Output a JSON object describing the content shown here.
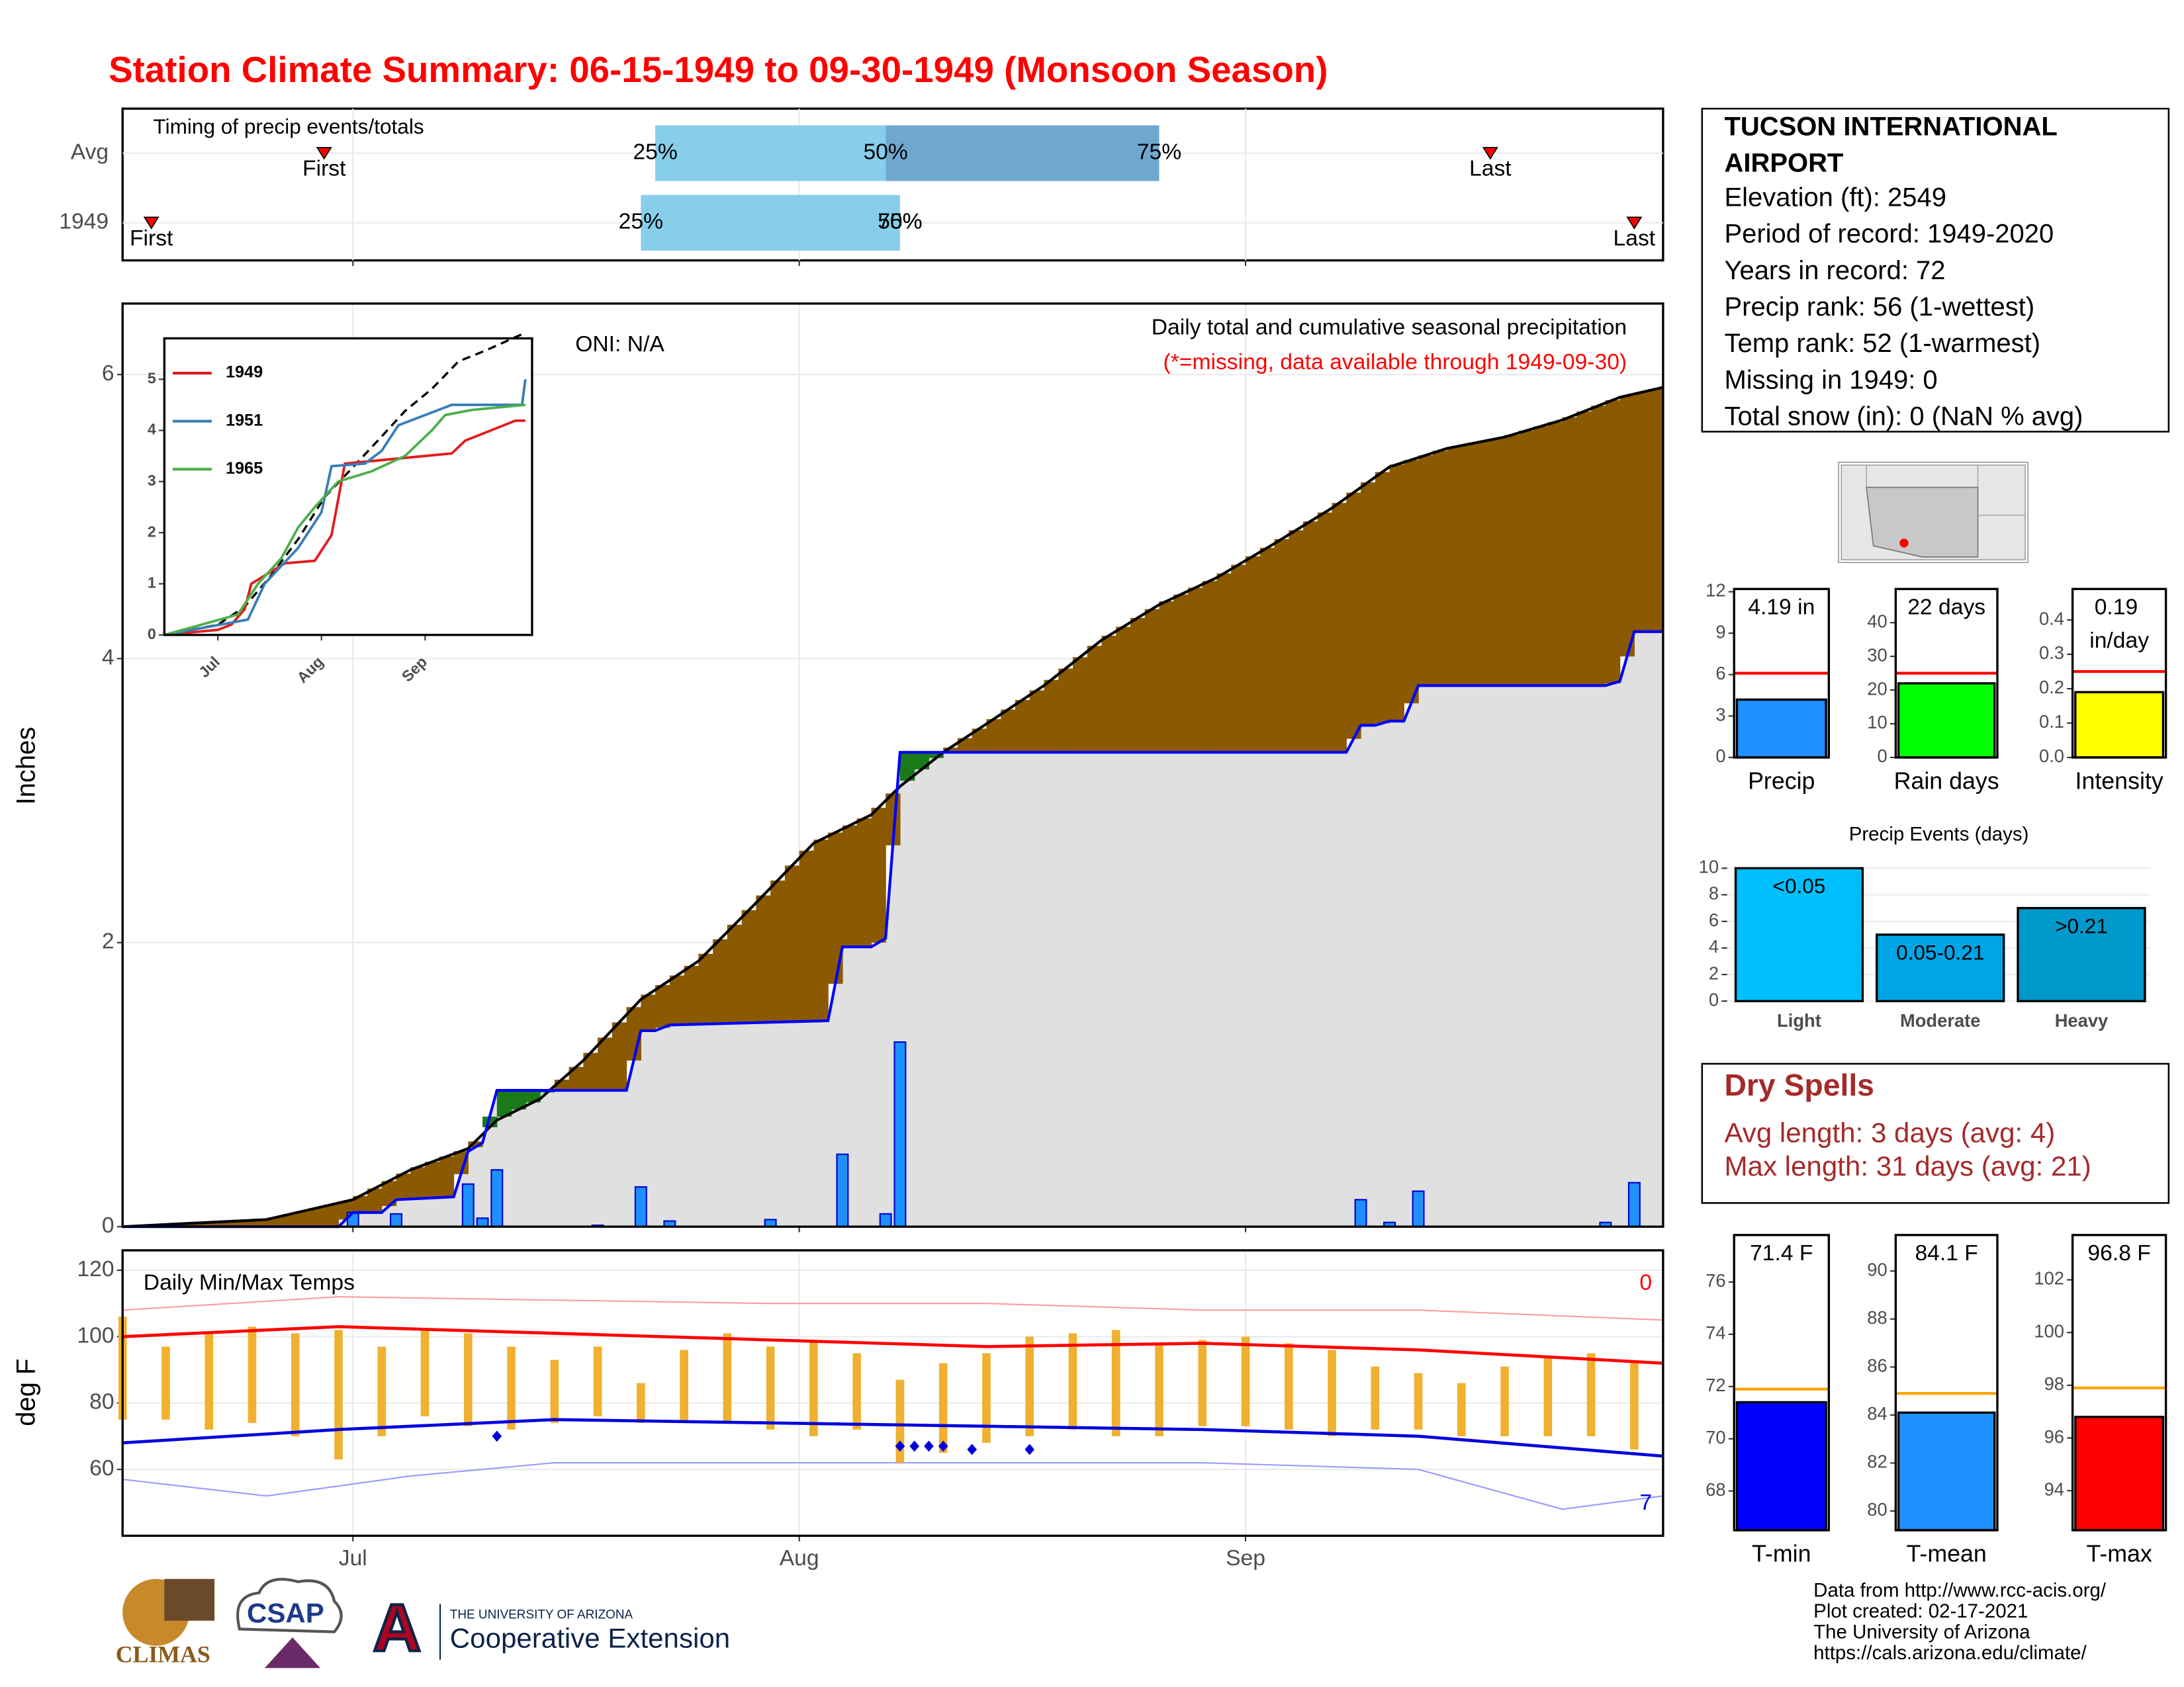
{
  "title": "Station Climate Summary: 06-15-1949 to 09-30-1949 (Monsoon Season)",
  "station": {
    "name": "TUCSON INTERNATIONAL AIRPORT",
    "lines": [
      "Elevation (ft): 2549",
      "Period of record: 1949-2020",
      "Years in record: 72",
      "Precip rank: 56 (1-wettest)",
      "Temp rank: 52 (1-warmest)",
      "Missing in 1949: 0",
      "Total snow (in): 0 (NaN % avg)"
    ]
  },
  "dry_spells": {
    "title": "Dry Spells",
    "lines": [
      "Avg length: 3 days (avg: 4)",
      "Max length: 31 days (avg: 21)"
    ]
  },
  "footer": [
    "Data from http://www.rcc-acis.org/",
    "Plot created: 02-17-2021",
    "The University of Arizona",
    "https://cals.arizona.edu/climate/"
  ],
  "logos": {
    "climas": "CLIMAS",
    "csap": "CSAP",
    "ua_letter": "A",
    "ua_name": "THE UNIVERSITY OF ARIZONA",
    "extension": "Cooperative Extension"
  },
  "chart_data": [
    {
      "type": "timing",
      "title": "Timing of precip events/totals",
      "xlim": [
        0,
        107
      ],
      "xgrid": [
        16,
        47,
        78
      ],
      "labels": {
        "first": "First",
        "last": "Last",
        "q25": "25%",
        "q50": "50%",
        "q75": "75%"
      },
      "rows": [
        {
          "name": "Avg",
          "first": 14,
          "q25": 37,
          "q50": 53,
          "q75": 72,
          "last": 95
        },
        {
          "name": "1949",
          "first": 2,
          "q25": 36,
          "q50": 54,
          "q75": 54,
          "last": 105
        }
      ],
      "colors": {
        "lower": "#87ceeb",
        "upper": "#6fa8cf",
        "marker": "#ff0000"
      }
    },
    {
      "type": "precip",
      "title": "Daily total and cumulative seasonal precipitation",
      "subtitle": "(*=missing, data available through 1949-09-30)",
      "annotation": "ONI: N/A",
      "ylabel": "Inches",
      "xlim": [
        0,
        107
      ],
      "xgrid": [
        16,
        47,
        78
      ],
      "ylim": [
        0,
        6.5
      ],
      "yticks": [
        0,
        2,
        4,
        6
      ],
      "grid": true,
      "cumulative_avg": {
        "color": "#000000",
        "x": [
          0,
          10,
          16,
          20,
          24,
          26,
          29,
          32,
          36,
          40,
          44,
          48,
          52,
          54,
          57,
          60,
          64,
          68,
          72,
          76,
          80,
          84,
          88,
          92,
          96,
          100,
          104,
          107
        ],
        "values": [
          0,
          0.05,
          0.19,
          0.4,
          0.55,
          0.75,
          0.9,
          1.17,
          1.6,
          1.87,
          2.28,
          2.7,
          2.9,
          3.1,
          3.34,
          3.54,
          3.81,
          4.13,
          4.38,
          4.57,
          4.81,
          5.06,
          5.35,
          5.48,
          5.56,
          5.68,
          5.84,
          5.91
        ]
      },
      "cumulative_obs": {
        "color": "#0000ff",
        "x": [
          0,
          15,
          16,
          18,
          19,
          23,
          24,
          25,
          26,
          35,
          36,
          37,
          38,
          49,
          50,
          52,
          53,
          54,
          85,
          86,
          87,
          88,
          89,
          90,
          103,
          104,
          105,
          107
        ],
        "values": [
          0,
          0,
          0.1,
          0.1,
          0.19,
          0.21,
          0.53,
          0.59,
          0.96,
          0.96,
          1.38,
          1.38,
          1.42,
          1.45,
          1.97,
          1.97,
          2.03,
          3.34,
          3.34,
          3.53,
          3.53,
          3.56,
          3.56,
          3.81,
          3.81,
          3.84,
          4.19,
          4.19
        ]
      },
      "daily": {
        "color": "#1e90ff",
        "x": [
          16,
          19,
          24,
          25,
          26,
          33,
          36,
          38,
          45,
          50,
          53,
          54,
          86,
          88,
          90,
          103,
          105
        ],
        "values": [
          0.1,
          0.09,
          0.3,
          0.06,
          0.4,
          0.01,
          0.28,
          0.04,
          0.05,
          0.51,
          0.09,
          1.3,
          0.19,
          0.03,
          0.25,
          0.03,
          0.31
        ]
      },
      "fill_colors": {
        "below_avg": "#8b5a00",
        "above_avg": "#1a7a1a",
        "observed": "#e0e0e0"
      }
    },
    {
      "type": "line",
      "xlim": [
        0,
        110
      ],
      "ylim": [
        0,
        5.8
      ],
      "yticks": [
        0,
        1,
        2,
        3,
        4,
        5
      ],
      "xticks": [
        {
          "value": 16,
          "label": "Jul"
        },
        {
          "value": 47,
          "label": "Aug"
        },
        {
          "value": 78,
          "label": "Sep"
        }
      ],
      "series": [
        {
          "name": "1949",
          "color": "#e41a1c",
          "x": [
            0,
            16,
            20,
            24,
            26,
            36,
            45,
            50,
            54,
            86,
            90,
            105,
            108
          ],
          "values": [
            0,
            0.1,
            0.2,
            0.5,
            1.0,
            1.4,
            1.45,
            1.95,
            3.35,
            3.55,
            3.8,
            4.19,
            4.19
          ]
        },
        {
          "name": "1951",
          "color": "#377eb8",
          "x": [
            0,
            25,
            30,
            40,
            47,
            50,
            60,
            65,
            70,
            78,
            86,
            107,
            108
          ],
          "values": [
            0,
            0.3,
            1.0,
            1.7,
            2.4,
            3.3,
            3.35,
            3.6,
            4.1,
            4.3,
            4.5,
            4.5,
            5.0
          ]
        },
        {
          "name": "1965",
          "color": "#4daf4a",
          "x": [
            0,
            22,
            28,
            35,
            40,
            45,
            52,
            62,
            72,
            80,
            84,
            92,
            108
          ],
          "values": [
            0,
            0.4,
            1.0,
            1.5,
            2.1,
            2.5,
            3.0,
            3.2,
            3.5,
            4.0,
            4.3,
            4.4,
            4.5
          ]
        }
      ],
      "reference": {
        "color": "#000000",
        "x": [
          0,
          16,
          24,
          32,
          40,
          48,
          56,
          64,
          72,
          80,
          88,
          96,
          108
        ],
        "values": [
          0,
          0.2,
          0.55,
          1.17,
          1.87,
          2.7,
          3.25,
          3.81,
          4.38,
          4.81,
          5.35,
          5.56,
          5.91
        ]
      }
    },
    {
      "type": "temps",
      "title": "Daily Min/Max Temps",
      "ylabel": "deg F",
      "xlim": [
        0,
        107
      ],
      "ylim": [
        40,
        126
      ],
      "yticks": [
        60,
        80,
        100,
        120
      ],
      "grid": true,
      "xticks": [
        {
          "value": 16,
          "label": "Jul"
        },
        {
          "value": 47,
          "label": "Aug"
        },
        {
          "value": 78,
          "label": "Sep"
        }
      ],
      "record_high_count": 0,
      "record_low_count": 7,
      "daily": {
        "color": "#f0b030",
        "x": [
          0,
          3,
          6,
          9,
          12,
          15,
          18,
          21,
          24,
          27,
          30,
          33,
          36,
          39,
          42,
          45,
          48,
          51,
          54,
          57,
          60,
          63,
          66,
          69,
          72,
          75,
          78,
          81,
          84,
          87,
          90,
          93,
          96,
          99,
          102,
          105
        ],
        "max": [
          106,
          97,
          101,
          103,
          101,
          102,
          97,
          102,
          101,
          97,
          93,
          97,
          86,
          96,
          101,
          97,
          99,
          95,
          87,
          92,
          95,
          100,
          101,
          102,
          98,
          99,
          100,
          98,
          96,
          91,
          89,
          86,
          91,
          94,
          95,
          92
        ],
        "min": [
          75,
          75,
          72,
          74,
          70,
          63,
          70,
          76,
          73,
          72,
          74,
          76,
          74,
          74,
          74,
          72,
          70,
          72,
          62,
          65,
          68,
          70,
          72,
          70,
          70,
          73,
          73,
          72,
          70,
          72,
          72,
          70,
          70,
          70,
          70,
          66
        ]
      },
      "normal_max": {
        "color": "#ff0000",
        "x": [
          0,
          15,
          30,
          45,
          60,
          75,
          90,
          107
        ],
        "values": [
          100,
          103,
          101,
          99,
          97,
          98,
          96,
          92
        ]
      },
      "normal_min": {
        "color": "#0000dd",
        "x": [
          0,
          15,
          30,
          45,
          60,
          75,
          90,
          107
        ],
        "values": [
          68,
          72,
          75,
          74,
          73,
          72,
          70,
          64
        ]
      },
      "record_max": {
        "color": "#ff9a9a",
        "x": [
          0,
          15,
          30,
          45,
          60,
          75,
          90,
          107
        ],
        "values": [
          108,
          112,
          111,
          110,
          110,
          108,
          108,
          105
        ]
      },
      "record_min": {
        "color": "#9a9aff",
        "x": [
          0,
          10,
          20,
          30,
          45,
          60,
          75,
          90,
          100,
          107
        ],
        "values": [
          57,
          52,
          58,
          62,
          62,
          62,
          62,
          60,
          48,
          52
        ]
      },
      "record_lows": {
        "color": "#0000dd",
        "x": [
          26,
          54,
          55,
          56,
          57,
          59,
          63
        ],
        "values": [
          70,
          67,
          67,
          67,
          67,
          66,
          66
        ]
      }
    },
    {
      "type": "summary",
      "categories": [
        "Precip"
      ],
      "values": [
        4.19
      ],
      "value_labels": [
        "4.19 in"
      ],
      "average": 6.1,
      "average_color": "#ff0000",
      "color": "#1e90ff",
      "ylim": [
        0,
        12.2
      ],
      "yticks": [
        0,
        3,
        6,
        9,
        12
      ]
    },
    {
      "type": "summary",
      "categories": [
        "Rain days"
      ],
      "values": [
        22
      ],
      "value_labels": [
        "22 days"
      ],
      "average": 25,
      "average_color": "#ff0000",
      "color": "#00ff00",
      "ylim": [
        0,
        50
      ],
      "yticks": [
        0,
        10,
        20,
        30,
        40
      ]
    },
    {
      "type": "summary",
      "categories": [
        "Intensity"
      ],
      "values": [
        0.19
      ],
      "value_labels": [
        "0.19 in/day"
      ],
      "average": 0.25,
      "average_color": "#ff0000",
      "color": "#ffff00",
      "ylim": [
        0,
        0.49
      ],
      "yticks": [
        {
          "value": 0,
          "label": "0.0"
        },
        0.1,
        0.2,
        0.3,
        0.4
      ]
    },
    {
      "type": "bar",
      "title": "Precip Events (days)",
      "categories": [
        "Light",
        "Moderate",
        "Heavy"
      ],
      "values": [
        10,
        5,
        7
      ],
      "bin_labels": [
        "<0.05",
        "0.05-0.21",
        ">0.21"
      ],
      "colors": [
        "#00bfff",
        "#00a5e6",
        "#0099cc"
      ],
      "ylim": [
        0,
        11
      ],
      "yticks": [
        0,
        2,
        4,
        6,
        8,
        10
      ],
      "grid": true
    },
    {
      "type": "summary",
      "categories": [
        "T-min"
      ],
      "values": [
        71.4
      ],
      "value_labels": [
        "71.4 F"
      ],
      "average": 71.9,
      "average_color": "#ffa500",
      "color": "#0000ff",
      "ylim": [
        66.5,
        77.8
      ],
      "yticks": [
        68,
        70,
        72,
        74,
        76
      ]
    },
    {
      "type": "summary",
      "categories": [
        "T-mean"
      ],
      "values": [
        84.1
      ],
      "value_labels": [
        "84.1 F"
      ],
      "average": 84.9,
      "average_color": "#ffa500",
      "color": "#1e90ff",
      "ylim": [
        79.2,
        91.5
      ],
      "yticks": [
        80,
        82,
        84,
        86,
        88,
        90
      ]
    },
    {
      "type": "summary",
      "categories": [
        "T-max"
      ],
      "values": [
        96.8
      ],
      "value_labels": [
        "96.8 F"
      ],
      "average": 97.9,
      "average_color": "#ffa500",
      "color": "#ff0000",
      "ylim": [
        92.5,
        103.7
      ],
      "yticks": [
        94,
        96,
        98,
        100,
        102
      ]
    }
  ]
}
